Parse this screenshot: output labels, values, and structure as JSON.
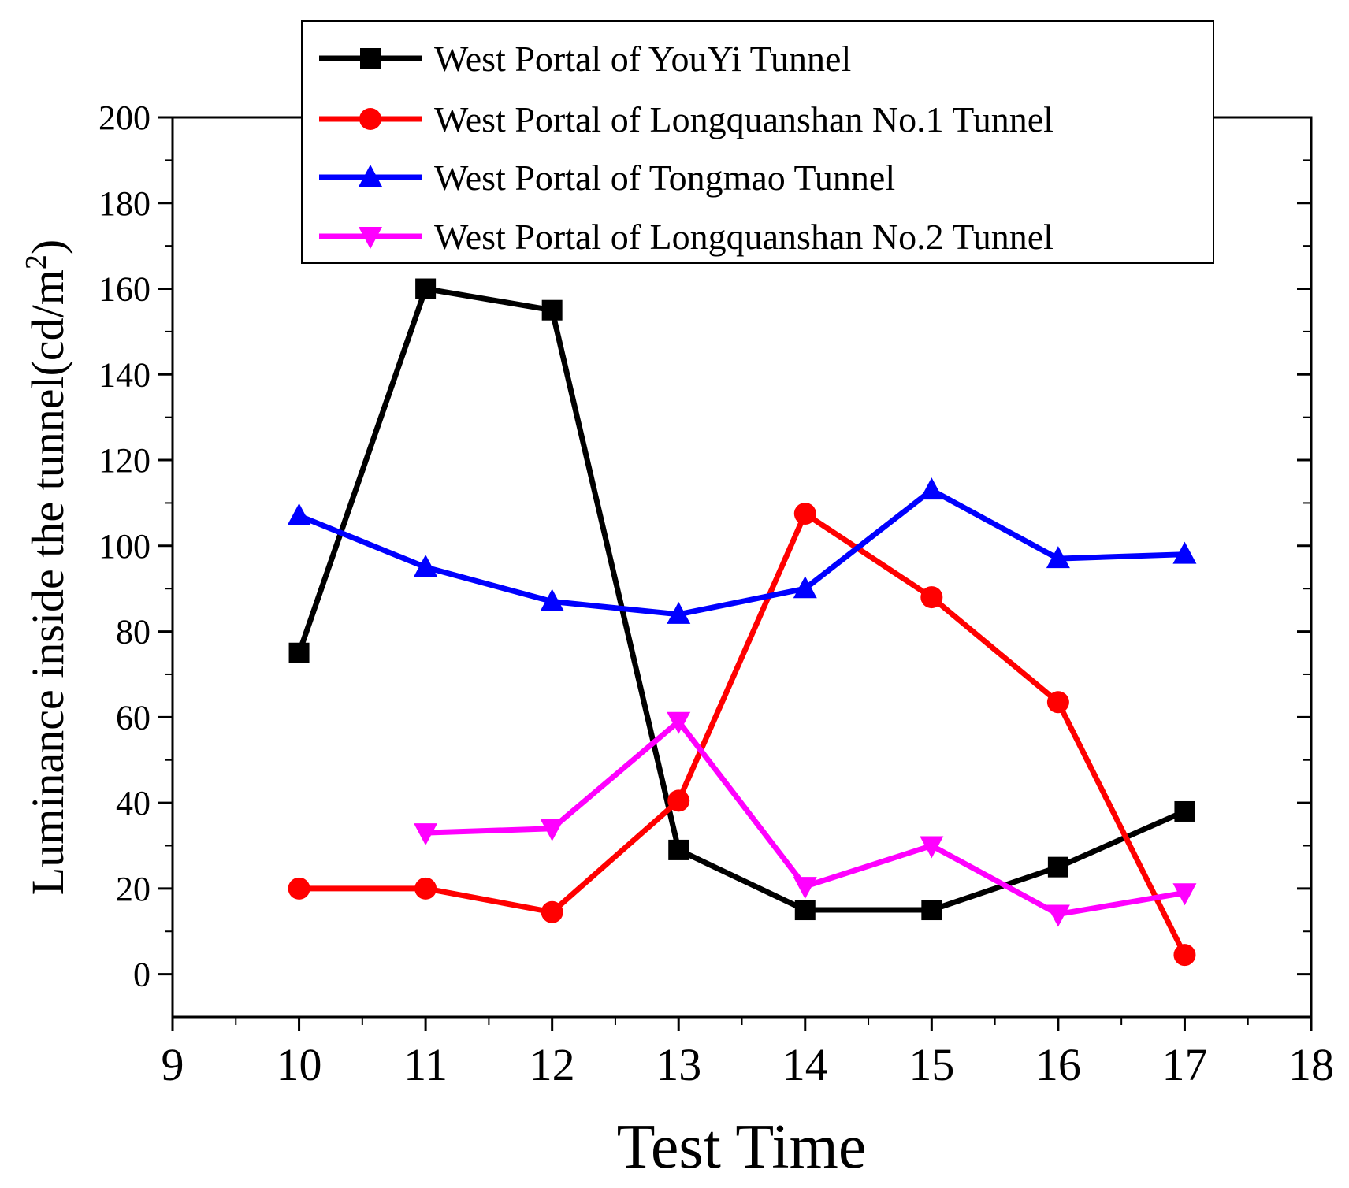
{
  "chart_data": {
    "type": "line",
    "xlabel": "Test Time",
    "ylabel": "Luminance inside the tunnel(cd/m²)",
    "ylabel_main": "Luminance inside the tunnel(cd/m",
    "ylabel_sup": "2",
    "ylabel_end": ")",
    "xlim": [
      9,
      18
    ],
    "ylim": [
      -10,
      200
    ],
    "xticks": [
      9,
      10,
      11,
      12,
      13,
      14,
      15,
      16,
      17,
      18
    ],
    "yticks": [
      0,
      20,
      40,
      60,
      80,
      100,
      120,
      140,
      160,
      180,
      200
    ],
    "legend_position": "top",
    "series": [
      {
        "name": "West Portal of YouYi Tunnel",
        "color": "#000000",
        "marker": "square",
        "x": [
          10,
          11,
          12,
          13,
          14,
          15,
          16,
          17
        ],
        "y": [
          75,
          160,
          155,
          29,
          15,
          15,
          25,
          38
        ]
      },
      {
        "name": "West Portal of Longquanshan No.1 Tunnel",
        "color": "#ff0000",
        "marker": "circle",
        "x": [
          10,
          11,
          12,
          13,
          14,
          15,
          16,
          17
        ],
        "y": [
          20,
          20,
          14.5,
          40.5,
          107.5,
          88,
          63.5,
          4.5
        ]
      },
      {
        "name": "West Portal of Tongmao Tunnel",
        "color": "#0000ff",
        "marker": "triangle-up",
        "x": [
          10,
          11,
          12,
          13,
          14,
          15,
          16,
          17
        ],
        "y": [
          107,
          95,
          87,
          84,
          90,
          113,
          97,
          98
        ]
      },
      {
        "name": "West Portal of Longquanshan No.2 Tunnel",
        "color": "#ff00ff",
        "marker": "triangle-down",
        "x": [
          11,
          12,
          13,
          14,
          15,
          16,
          17
        ],
        "y": [
          33,
          34,
          59,
          20.5,
          30,
          14,
          19
        ]
      }
    ]
  }
}
